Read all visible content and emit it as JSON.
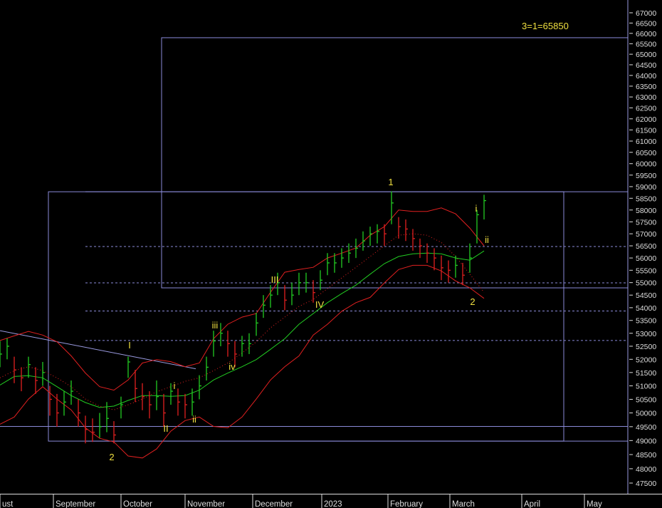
{
  "chart_data": {
    "type": "ohlc",
    "log": true,
    "ylim": [
      47130,
      67630
    ],
    "yticks": [
      67000,
      66500,
      66000,
      65500,
      65000,
      64500,
      64000,
      63500,
      63000,
      62500,
      62000,
      61500,
      61000,
      60500,
      60000,
      59500,
      59000,
      58500,
      58000,
      57500,
      57000,
      56500,
      56000,
      55500,
      55000,
      54500,
      54000,
      53500,
      53000,
      52500,
      52000,
      51500,
      51000,
      50500,
      50000,
      49500,
      49000,
      48500,
      48000,
      47500
    ],
    "xlim": [
      0,
      88.2
    ],
    "xticks": [
      {
        "value": 0,
        "label": "ust"
      },
      {
        "value": 7.5,
        "label": "September"
      },
      {
        "value": 17,
        "label": "October"
      },
      {
        "value": 26,
        "label": "November"
      },
      {
        "value": 35.5,
        "label": "December"
      },
      {
        "value": 45.2,
        "label": "2023"
      },
      {
        "value": 54.5,
        "label": "February"
      },
      {
        "value": 63.2,
        "label": "March"
      },
      {
        "value": 73.3,
        "label": "April"
      },
      {
        "value": 82.1,
        "label": "May"
      }
    ],
    "up_color": "#22cc22",
    "down_color": "#e02020",
    "x": [
      0,
      1,
      2,
      3,
      4,
      5,
      6,
      7,
      8,
      9,
      10,
      11,
      12,
      13,
      14,
      15,
      16,
      17,
      18,
      19,
      20,
      21,
      22,
      23,
      24,
      25,
      26,
      27,
      28,
      29,
      30,
      31,
      32,
      33,
      34,
      35,
      36,
      37,
      38,
      39,
      40,
      41,
      42,
      43,
      44,
      45,
      46,
      47,
      48,
      49,
      50,
      51,
      52,
      53,
      54,
      55,
      56,
      57,
      58,
      59,
      60,
      61,
      62,
      63,
      64,
      65,
      66,
      67,
      68
    ],
    "high": [
      52700,
      52800,
      52100,
      51700,
      52100,
      51700,
      51900,
      51000,
      50700,
      50800,
      51200,
      50500,
      49900,
      49800,
      50000,
      50400,
      49700,
      50600,
      52100,
      51600,
      51100,
      50800,
      51200,
      50700,
      51100,
      50900,
      50700,
      50900,
      51400,
      52100,
      53100,
      53400,
      53100,
      52700,
      52900,
      53000,
      53800,
      54500,
      54900,
      55400,
      54900,
      55000,
      55400,
      55400,
      55100,
      55500,
      56200,
      56200,
      56400,
      56600,
      56800,
      57100,
      57300,
      57400,
      57400,
      58800,
      57700,
      57600,
      57200,
      56800,
      56600,
      56400,
      56100,
      55900,
      56100,
      55800,
      56600,
      58000,
      58650
    ],
    "low": [
      51700,
      52000,
      51100,
      50800,
      51300,
      50700,
      51000,
      49900,
      49500,
      49900,
      50300,
      49500,
      48900,
      48950,
      49100,
      49300,
      48900,
      49800,
      51300,
      50400,
      50100,
      49800,
      50100,
      49500,
      50300,
      49900,
      49800,
      49900,
      50500,
      51200,
      52100,
      52500,
      52100,
      51700,
      52100,
      52200,
      52900,
      53600,
      54000,
      54500,
      53900,
      54100,
      54500,
      54600,
      54200,
      54700,
      55300,
      55400,
      55600,
      55800,
      56000,
      56300,
      56500,
      56600,
      56500,
      57400,
      56800,
      56700,
      56300,
      56000,
      55800,
      55500,
      55100,
      55000,
      55200,
      54900,
      55400,
      56600,
      57600
    ],
    "close": [
      52200,
      52500,
      51600,
      51300,
      51800,
      51200,
      51500,
      50500,
      50000,
      50400,
      50800,
      50000,
      49400,
      49300,
      49500,
      49800,
      49200,
      50300,
      51900,
      50900,
      50600,
      50300,
      50600,
      50000,
      50800,
      50400,
      50300,
      50400,
      51000,
      51700,
      52700,
      53000,
      52600,
      52200,
      52600,
      52600,
      53400,
      54100,
      54500,
      55000,
      54300,
      54500,
      55000,
      55000,
      54600,
      55100,
      55800,
      55800,
      56000,
      56200,
      56400,
      56700,
      57000,
      57100,
      57000,
      58300,
      57300,
      57200,
      56800,
      56500,
      56200,
      56000,
      55600,
      55500,
      55700,
      55300,
      56000,
      57800,
      58400
    ],
    "line_x": [
      0,
      2,
      4,
      6,
      8,
      10,
      12,
      14,
      16,
      18,
      20,
      22,
      24,
      26,
      28,
      30,
      32,
      34,
      36,
      38,
      40,
      42,
      44,
      46,
      48,
      50,
      52,
      54,
      56,
      58,
      60,
      62,
      64,
      66,
      68
    ],
    "lines": [
      {
        "color": "#e02020",
        "dash": false,
        "values": [
          52720,
          52900,
          53070,
          52930,
          52670,
          52130,
          51480,
          50970,
          50840,
          51220,
          51860,
          51990,
          51910,
          51720,
          51860,
          52790,
          53350,
          53630,
          53770,
          54610,
          55420,
          55530,
          55620,
          56000,
          56200,
          56410,
          56940,
          57300,
          58000,
          57940,
          57940,
          58090,
          57840,
          57240,
          56500
        ]
      },
      {
        "color": "#e02020",
        "dash": false,
        "values": [
          49590,
          49850,
          50510,
          50970,
          50510,
          50110,
          49460,
          49080,
          48950,
          48450,
          48380,
          48700,
          49340,
          49720,
          49850,
          49510,
          49460,
          49850,
          50510,
          51220,
          51720,
          52130,
          52930,
          53350,
          53860,
          54200,
          54410,
          54990,
          55530,
          55700,
          55700,
          55470,
          55070,
          54790,
          54370
        ]
      },
      {
        "color": "#22cc22",
        "dash": false,
        "values": [
          51030,
          51350,
          51380,
          51300,
          50970,
          50640,
          50380,
          50200,
          50250,
          50460,
          50640,
          50640,
          50610,
          50640,
          50840,
          51220,
          51480,
          51720,
          51990,
          52380,
          52790,
          53350,
          53770,
          54200,
          54560,
          54900,
          55340,
          55770,
          56060,
          56170,
          56200,
          56170,
          56000,
          55910,
          56290
        ]
      },
      {
        "color": "#e02020",
        "dash": true,
        "values": [
          51300,
          51570,
          51720,
          51570,
          51300,
          50970,
          50510,
          50250,
          50110,
          50300,
          50510,
          50780,
          50970,
          51170,
          51300,
          51570,
          51860,
          52240,
          52670,
          53210,
          53630,
          54050,
          54330,
          54760,
          55190,
          55620,
          56060,
          56500,
          56940,
          57000,
          56940,
          56640,
          56060,
          55340,
          54610
        ]
      }
    ],
    "levels": [
      {
        "value": 56470,
        "from": 12,
        "to": 88.2,
        "dash": true
      },
      {
        "value": 54990,
        "from": 12,
        "to": 88.2,
        "dash": true
      },
      {
        "value": 53870,
        "from": 12,
        "to": 88.2,
        "dash": true
      },
      {
        "value": 52720,
        "from": 12,
        "to": 88.2,
        "dash": true
      },
      {
        "value": 58780,
        "from": 12,
        "to": 88.2,
        "dash": false
      },
      {
        "value": 49510,
        "from": 0,
        "to": 88.2,
        "dash": false
      },
      {
        "value": 48980,
        "from": 12,
        "to": 88.2,
        "dash": false
      }
    ],
    "boxes": [
      {
        "x0": 6.8,
        "x1": 79.2,
        "top": 58780,
        "bottom": 48980
      },
      {
        "x0": 22.7,
        "x1": 88.2,
        "top": 65790,
        "bottom": 54790
      }
    ],
    "trendline": {
      "x": [
        0,
        27.5
      ],
      "values": [
        53100,
        51640
      ]
    },
    "annotations": [
      "3=1=65850",
      "1",
      "i",
      "ii",
      "2",
      "III",
      "IV",
      "iii",
      "iv",
      "I",
      "i",
      "II",
      "ii",
      "2"
    ]
  }
}
